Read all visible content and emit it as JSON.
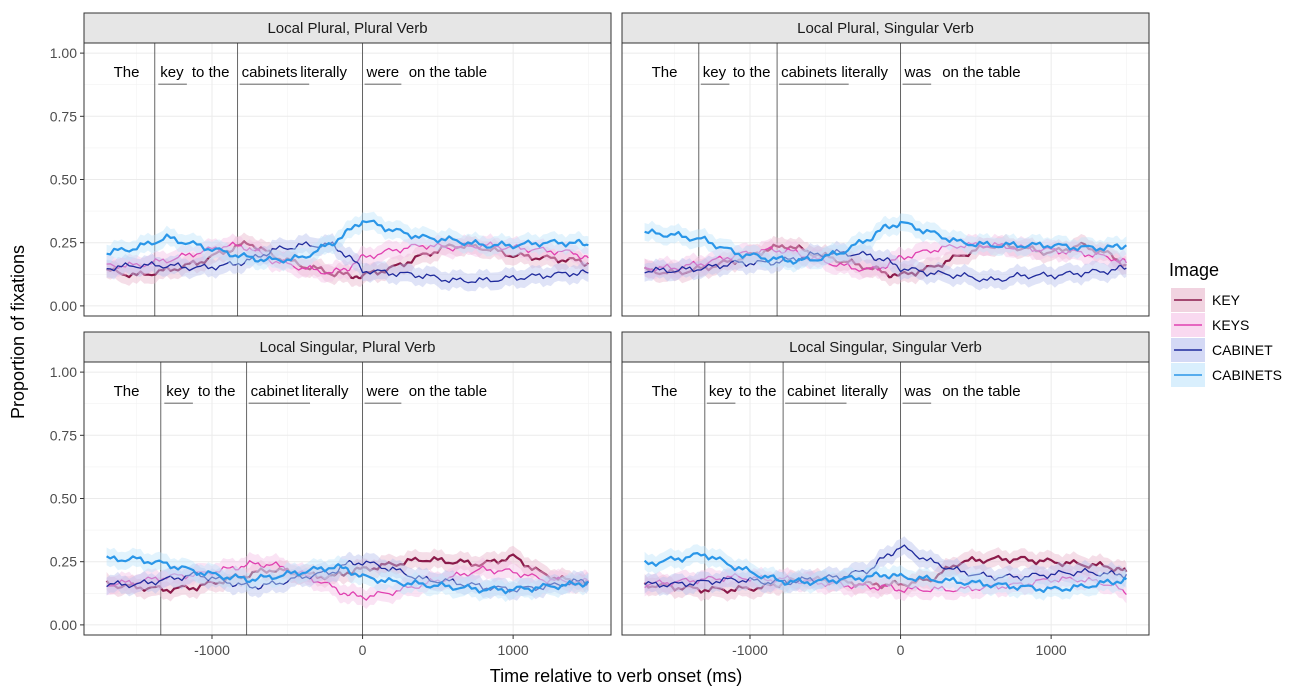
{
  "chart_data": {
    "type": "line",
    "xlabel": "Time relative to verb onset (ms)",
    "ylabel": "Proportion of fixations",
    "xlim": [
      -1850,
      1650
    ],
    "ylim": [
      -0.04,
      1.04
    ],
    "x_ticks": [
      -1000,
      0,
      1000
    ],
    "x_tick_labels": [
      "-1000",
      "0",
      "1000"
    ],
    "y_ticks": [
      0,
      0.25,
      0.5,
      0.75,
      1.0
    ],
    "y_tick_labels": [
      "0.00",
      "0.25",
      "0.50",
      "0.75",
      "1.00"
    ],
    "grid": true,
    "legend": {
      "title": "Image",
      "position": "right",
      "entries": [
        "KEY",
        "KEYS",
        "CABINET",
        "CABINETS"
      ]
    },
    "series_meta": [
      {
        "name": "KEY",
        "color": "#8b1a4a",
        "fill": "#e8b6cc"
      },
      {
        "name": "KEYS",
        "color": "#e040b0",
        "fill": "#f5c0e6"
      },
      {
        "name": "CABINET",
        "color": "#1f2a9c",
        "fill": "#b8c0ee"
      },
      {
        "name": "CABINETS",
        "color": "#2a96e8",
        "fill": "#bfe4fb"
      }
    ],
    "panels": [
      {
        "title": "Local Plural, Plural Verb",
        "sentence": [
          {
            "text": "The",
            "x": -1680,
            "underline": false
          },
          {
            "text": "key",
            "x": -1370,
            "underline": true
          },
          {
            "text": "to the",
            "x": -1160,
            "underline": false
          },
          {
            "text": "cabinets",
            "x": -830,
            "underline": true
          },
          {
            "text": "literally",
            "x": -440,
            "underline": false
          },
          {
            "text": "were",
            "x": 0,
            "underline": true
          },
          {
            "text": "on the table",
            "x": 280,
            "underline": false
          }
        ],
        "vlines": [
          -1380,
          -830,
          0
        ],
        "series": [
          {
            "name": "KEY",
            "x": [
              -1700,
              -1500,
              -1300,
              -1100,
              -900,
              -750,
              -600,
              -400,
              -200,
              -100,
              0,
              200,
              400,
              600,
              800,
              1000,
              1200,
              1400,
              1500
            ],
            "y": [
              0.14,
              0.12,
              0.14,
              0.17,
              0.22,
              0.25,
              0.2,
              0.16,
              0.13,
              0.12,
              0.12,
              0.15,
              0.2,
              0.24,
              0.23,
              0.2,
              0.19,
              0.18,
              0.17
            ]
          },
          {
            "name": "KEYS",
            "x": [
              -1700,
              -1500,
              -1300,
              -1100,
              -900,
              -750,
              -600,
              -400,
              -200,
              -100,
              0,
              200,
              400,
              600,
              800,
              1000,
              1200,
              1400,
              1500
            ],
            "y": [
              0.16,
              0.16,
              0.18,
              0.21,
              0.24,
              0.23,
              0.18,
              0.15,
              0.13,
              0.15,
              0.19,
              0.22,
              0.24,
              0.23,
              0.24,
              0.23,
              0.22,
              0.21,
              0.19
            ]
          },
          {
            "name": "CABINET",
            "x": [
              -1700,
              -1500,
              -1300,
              -1100,
              -900,
              -750,
              -600,
              -400,
              -200,
              -100,
              0,
              200,
              400,
              600,
              800,
              1000,
              1200,
              1400,
              1500
            ],
            "y": [
              0.15,
              0.16,
              0.16,
              0.15,
              0.16,
              0.18,
              0.22,
              0.24,
              0.24,
              0.2,
              0.14,
              0.13,
              0.12,
              0.1,
              0.1,
              0.11,
              0.12,
              0.13,
              0.13
            ]
          },
          {
            "name": "CABINETS",
            "x": [
              -1700,
              -1500,
              -1300,
              -1100,
              -900,
              -750,
              -600,
              -400,
              -200,
              -100,
              0,
              200,
              400,
              600,
              800,
              1000,
              1200,
              1400,
              1500
            ],
            "y": [
              0.21,
              0.23,
              0.27,
              0.24,
              0.21,
              0.19,
              0.18,
              0.19,
              0.25,
              0.29,
              0.34,
              0.3,
              0.27,
              0.26,
              0.24,
              0.24,
              0.25,
              0.25,
              0.24
            ]
          }
        ]
      },
      {
        "title": "Local Plural, Singular Verb",
        "sentence": [
          {
            "text": "The",
            "x": -1680,
            "underline": false
          },
          {
            "text": "key",
            "x": -1340,
            "underline": true
          },
          {
            "text": "to the",
            "x": -1140,
            "underline": false
          },
          {
            "text": "cabinets",
            "x": -820,
            "underline": true
          },
          {
            "text": "literally",
            "x": -420,
            "underline": false
          },
          {
            "text": "was",
            "x": 0,
            "underline": true
          },
          {
            "text": "on the table",
            "x": 250,
            "underline": false
          }
        ],
        "vlines": [
          -1340,
          -820,
          0
        ],
        "series": [
          {
            "name": "KEY",
            "x": [
              -1700,
              -1500,
              -1300,
              -1100,
              -900,
              -750,
              -600,
              -400,
              -200,
              -100,
              0,
              200,
              400,
              600,
              800,
              1000,
              1200,
              1400,
              1500
            ],
            "y": [
              0.14,
              0.13,
              0.15,
              0.18,
              0.22,
              0.24,
              0.21,
              0.18,
              0.15,
              0.13,
              0.12,
              0.15,
              0.2,
              0.24,
              0.23,
              0.21,
              0.24,
              0.2,
              0.16
            ]
          },
          {
            "name": "KEYS",
            "x": [
              -1700,
              -1500,
              -1300,
              -1100,
              -900,
              -750,
              -600,
              -400,
              -200,
              -100,
              0,
              200,
              400,
              600,
              800,
              1000,
              1200,
              1400,
              1500
            ],
            "y": [
              0.15,
              0.15,
              0.17,
              0.2,
              0.22,
              0.22,
              0.19,
              0.16,
              0.14,
              0.16,
              0.19,
              0.22,
              0.24,
              0.24,
              0.23,
              0.22,
              0.21,
              0.19,
              0.17
            ]
          },
          {
            "name": "CABINET",
            "x": [
              -1700,
              -1500,
              -1300,
              -1100,
              -900,
              -750,
              -600,
              -400,
              -200,
              -100,
              0,
              200,
              400,
              600,
              800,
              1000,
              1200,
              1400,
              1500
            ],
            "y": [
              0.14,
              0.14,
              0.15,
              0.17,
              0.17,
              0.18,
              0.2,
              0.21,
              0.2,
              0.18,
              0.15,
              0.13,
              0.12,
              0.1,
              0.12,
              0.12,
              0.13,
              0.14,
              0.15
            ]
          },
          {
            "name": "CABINETS",
            "x": [
              -1700,
              -1500,
              -1300,
              -1100,
              -900,
              -750,
              -600,
              -400,
              -200,
              -100,
              0,
              200,
              400,
              600,
              800,
              1000,
              1200,
              1400,
              1500
            ],
            "y": [
              0.29,
              0.28,
              0.26,
              0.21,
              0.19,
              0.18,
              0.18,
              0.21,
              0.27,
              0.31,
              0.33,
              0.29,
              0.25,
              0.24,
              0.24,
              0.24,
              0.23,
              0.23,
              0.24
            ]
          }
        ]
      },
      {
        "title": "Local Singular, Plural Verb",
        "sentence": [
          {
            "text": "The",
            "x": -1680,
            "underline": false
          },
          {
            "text": "key",
            "x": -1330,
            "underline": true
          },
          {
            "text": "to the",
            "x": -1120,
            "underline": false
          },
          {
            "text": "cabinet",
            "x": -770,
            "underline": true
          },
          {
            "text": "literally",
            "x": -430,
            "underline": false
          },
          {
            "text": "were",
            "x": 0,
            "underline": true
          },
          {
            "text": "on the table",
            "x": 280,
            "underline": false
          }
        ],
        "vlines": [
          -1340,
          -770,
          0
        ],
        "series": [
          {
            "name": "KEY",
            "x": [
              -1700,
              -1500,
              -1300,
              -1100,
              -900,
              -750,
              -600,
              -400,
              -200,
              -100,
              0,
              200,
              400,
              600,
              800,
              1000,
              1200,
              1400,
              1500
            ],
            "y": [
              0.16,
              0.15,
              0.14,
              0.15,
              0.18,
              0.2,
              0.22,
              0.2,
              0.19,
              0.21,
              0.22,
              0.24,
              0.26,
              0.25,
              0.24,
              0.27,
              0.2,
              0.17,
              0.17
            ]
          },
          {
            "name": "KEYS",
            "x": [
              -1700,
              -1500,
              -1300,
              -1100,
              -900,
              -750,
              -600,
              -400,
              -200,
              -100,
              0,
              200,
              400,
              600,
              800,
              1000,
              1200,
              1400,
              1500
            ],
            "y": [
              0.16,
              0.17,
              0.19,
              0.2,
              0.22,
              0.24,
              0.24,
              0.2,
              0.15,
              0.12,
              0.11,
              0.13,
              0.16,
              0.19,
              0.22,
              0.21,
              0.18,
              0.17,
              0.17
            ]
          },
          {
            "name": "CABINET",
            "x": [
              -1700,
              -1500,
              -1300,
              -1100,
              -900,
              -750,
              -600,
              -400,
              -200,
              -100,
              0,
              200,
              400,
              600,
              800,
              1000,
              1200,
              1400,
              1500
            ],
            "y": [
              0.16,
              0.16,
              0.18,
              0.2,
              0.17,
              0.15,
              0.16,
              0.19,
              0.21,
              0.24,
              0.25,
              0.22,
              0.18,
              0.17,
              0.15,
              0.14,
              0.15,
              0.17,
              0.17
            ]
          },
          {
            "name": "CABINETS",
            "x": [
              -1700,
              -1500,
              -1300,
              -1100,
              -900,
              -750,
              -600,
              -400,
              -200,
              -100,
              0,
              200,
              400,
              600,
              800,
              1000,
              1200,
              1400,
              1500
            ],
            "y": [
              0.26,
              0.26,
              0.24,
              0.21,
              0.19,
              0.18,
              0.19,
              0.21,
              0.23,
              0.22,
              0.19,
              0.17,
              0.16,
              0.15,
              0.14,
              0.14,
              0.15,
              0.16,
              0.17
            ]
          }
        ]
      },
      {
        "title": "Local Singular, Singular Verb",
        "sentence": [
          {
            "text": "The",
            "x": -1680,
            "underline": false
          },
          {
            "text": "key",
            "x": -1300,
            "underline": true
          },
          {
            "text": "to the",
            "x": -1100,
            "underline": false
          },
          {
            "text": "cabinet",
            "x": -780,
            "underline": true
          },
          {
            "text": "literally",
            "x": -420,
            "underline": false
          },
          {
            "text": "was",
            "x": 0,
            "underline": true
          },
          {
            "text": "on the table",
            "x": 250,
            "underline": false
          }
        ],
        "vlines": [
          -1300,
          -780,
          0
        ],
        "series": [
          {
            "name": "KEY",
            "x": [
              -1700,
              -1500,
              -1300,
              -1100,
              -900,
              -750,
              -600,
              -400,
              -200,
              -100,
              0,
              200,
              400,
              600,
              800,
              1000,
              1200,
              1400,
              1500
            ],
            "y": [
              0.16,
              0.15,
              0.14,
              0.14,
              0.15,
              0.17,
              0.18,
              0.17,
              0.16,
              0.16,
              0.16,
              0.18,
              0.25,
              0.26,
              0.26,
              0.25,
              0.24,
              0.23,
              0.21
            ]
          },
          {
            "name": "KEYS",
            "x": [
              -1700,
              -1500,
              -1300,
              -1100,
              -900,
              -750,
              -600,
              -400,
              -200,
              -100,
              0,
              200,
              400,
              600,
              800,
              1000,
              1200,
              1400,
              1500
            ],
            "y": [
              0.16,
              0.17,
              0.18,
              0.19,
              0.18,
              0.18,
              0.17,
              0.16,
              0.15,
              0.15,
              0.14,
              0.14,
              0.14,
              0.15,
              0.16,
              0.18,
              0.18,
              0.16,
              0.12
            ]
          },
          {
            "name": "CABINET",
            "x": [
              -1700,
              -1500,
              -1300,
              -1100,
              -900,
              -750,
              -600,
              -400,
              -200,
              -100,
              0,
              200,
              400,
              600,
              800,
              1000,
              1200,
              1400,
              1500
            ],
            "y": [
              0.16,
              0.16,
              0.17,
              0.18,
              0.17,
              0.17,
              0.18,
              0.19,
              0.22,
              0.27,
              0.31,
              0.25,
              0.21,
              0.19,
              0.19,
              0.2,
              0.21,
              0.2,
              0.2
            ]
          },
          {
            "name": "CABINETS",
            "x": [
              -1700,
              -1500,
              -1300,
              -1100,
              -900,
              -750,
              -600,
              -400,
              -200,
              -100,
              0,
              200,
              400,
              600,
              800,
              1000,
              1200,
              1400,
              1500
            ],
            "y": [
              0.24,
              0.26,
              0.28,
              0.23,
              0.19,
              0.17,
              0.17,
              0.18,
              0.19,
              0.2,
              0.19,
              0.18,
              0.17,
              0.16,
              0.15,
              0.14,
              0.15,
              0.17,
              0.18
            ]
          }
        ]
      }
    ]
  }
}
